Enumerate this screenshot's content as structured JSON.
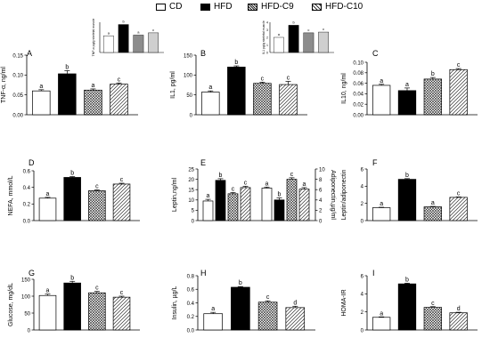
{
  "legend": [
    {
      "label": "CD",
      "fill": "white"
    },
    {
      "label": "HFD",
      "fill": "black"
    },
    {
      "label": "HFD-C9",
      "fill": "dense"
    },
    {
      "label": "HFD-C10",
      "fill": "diag"
    }
  ],
  "colors": {
    "bar_outline": "#000000",
    "inset_grey": "#8c8c8c",
    "inset_light": "#cfcfcf"
  },
  "chart_data": [
    {
      "id": "A",
      "type": "bar",
      "panel_label": "A",
      "ylabel": "TNF-α, ng/ml",
      "ylim": [
        0,
        0.15
      ],
      "yticks": [
        "0.00",
        "0.05",
        "0.10",
        "0.15"
      ],
      "yticks_v": [
        0,
        0.05,
        0.1,
        0.15
      ],
      "values": [
        0.06,
        0.103,
        0.062,
        0.077
      ],
      "errors": [
        0.003,
        0.008,
        0.003,
        0.003
      ],
      "letters": [
        "a",
        "b",
        "a",
        "c"
      ],
      "inset": {
        "ylabel": "TNF-α pg/g skeletal muscle",
        "ylim": [
          0,
          4
        ],
        "values": [
          2.2,
          3.7,
          2.3,
          2.6
        ],
        "letters": [
          "a",
          "b",
          "a",
          "c"
        ]
      }
    },
    {
      "id": "B",
      "type": "bar",
      "panel_label": "B",
      "ylabel": "IL1, pg/ml",
      "ylim": [
        0,
        150
      ],
      "yticks": [
        "0",
        "50",
        "100",
        "150"
      ],
      "yticks_v": [
        0,
        50,
        100,
        150
      ],
      "values": [
        57,
        120,
        79,
        76
      ],
      "errors": [
        3,
        3,
        3,
        8
      ],
      "letters": [
        "a",
        "b",
        "c",
        "c"
      ],
      "inset": {
        "ylabel": "IL1 pg/g skeletal muscle",
        "ylim": [
          0,
          4
        ],
        "yticks": [
          "0",
          "1",
          "2",
          "3",
          "4"
        ],
        "values": [
          2.0,
          3.6,
          2.6,
          2.7
        ],
        "letters": [
          "a",
          "b",
          "c",
          "c"
        ]
      }
    },
    {
      "id": "C",
      "type": "bar",
      "panel_label": "C",
      "ylabel": "IL10, ng/ml",
      "ylim": [
        0,
        0.1
      ],
      "yticks": [
        "0.00",
        "0.02",
        "0.04",
        "0.06",
        "0.08",
        "0.10"
      ],
      "yticks_v": [
        0,
        0.02,
        0.04,
        0.06,
        0.08,
        0.1
      ],
      "values": [
        0.056,
        0.046,
        0.068,
        0.086
      ],
      "errors": [
        0.002,
        0.005,
        0.003,
        0.002
      ],
      "letters": [
        "a",
        "a",
        "b",
        "c"
      ]
    },
    {
      "id": "D",
      "type": "bar",
      "panel_label": "D",
      "ylabel": "NEFA, mmol/L",
      "ylim": [
        0,
        0.6
      ],
      "yticks": [
        "0.0",
        "0.2",
        "0.4",
        "0.6"
      ],
      "yticks_v": [
        0,
        0.2,
        0.4,
        0.6
      ],
      "values": [
        0.27,
        0.52,
        0.36,
        0.44
      ],
      "errors": [
        0.01,
        0.01,
        0.01,
        0.01
      ],
      "letters": [
        "a",
        "b",
        "c",
        "c"
      ]
    },
    {
      "id": "E",
      "type": "bar",
      "panel_label": "E",
      "ylabel": "Leptin,ng/ml",
      "y2label": "Adiponectin,μg/ml",
      "ylim": [
        0,
        25
      ],
      "yticks": [
        "0",
        "5",
        "10",
        "15",
        "20",
        "25"
      ],
      "yticks_v": [
        0,
        5,
        10,
        15,
        20,
        25
      ],
      "y2lim": [
        0,
        10
      ],
      "y2ticks": [
        "0",
        "2",
        "4",
        "6",
        "8",
        "10"
      ],
      "y2ticks_v": [
        0,
        2,
        4,
        6,
        8,
        10
      ],
      "groups": [
        {
          "name": "Leptin",
          "values": [
            9.5,
            19.5,
            13,
            16
          ],
          "errors": [
            0.8,
            0.8,
            0.6,
            0.6
          ],
          "letters": [
            "a",
            "b",
            "c",
            "c"
          ]
        },
        {
          "name": "Adiponectin",
          "values": [
            6.3,
            4.0,
            8.0,
            6.1
          ],
          "errors": [
            0.2,
            0.4,
            0.3,
            0.3
          ],
          "letters": [
            "a",
            "b",
            "c",
            "a"
          ]
        }
      ]
    },
    {
      "id": "F",
      "type": "bar",
      "panel_label": "F",
      "ylabel": "Leptin/adiponectin",
      "ylim": [
        0,
        6
      ],
      "yticks": [
        "0",
        "2",
        "4",
        "6"
      ],
      "yticks_v": [
        0,
        2,
        4,
        6
      ],
      "values": [
        1.5,
        4.8,
        1.6,
        2.7
      ],
      "errors": [
        0.05,
        0.08,
        0.05,
        0.05
      ],
      "letters": [
        "a",
        "b",
        "a",
        "c"
      ]
    },
    {
      "id": "G",
      "type": "bar",
      "panel_label": "G",
      "ylabel": "Glucose, mg/dL",
      "ylim": [
        0,
        150
      ],
      "yticks": [
        "0",
        "50",
        "100",
        "150"
      ],
      "yticks_v": [
        0,
        50,
        100,
        150
      ],
      "values": [
        102,
        139,
        110,
        97
      ],
      "errors": [
        4,
        5,
        4,
        3
      ],
      "letters": [
        "a",
        "b",
        "c",
        "c"
      ]
    },
    {
      "id": "H",
      "type": "bar",
      "panel_label": "H",
      "ylabel": "Insulin, µg/L",
      "ylim": [
        0,
        0.8
      ],
      "yticks": [
        "0.0",
        "0.2",
        "0.4",
        "0.6",
        "0.8"
      ],
      "yticks_v": [
        0,
        0.2,
        0.4,
        0.6,
        0.8
      ],
      "values": [
        0.24,
        0.63,
        0.41,
        0.33
      ],
      "errors": [
        0.02,
        0.01,
        0.02,
        0.02
      ],
      "letters": [
        "a",
        "b",
        "c",
        "d"
      ]
    },
    {
      "id": "I",
      "type": "bar",
      "panel_label": "I",
      "ylabel": "HOMA-IR",
      "ylim": [
        0,
        6
      ],
      "yticks": [
        "0",
        "2",
        "4",
        "6"
      ],
      "yticks_v": [
        0,
        2,
        4,
        6
      ],
      "values": [
        1.4,
        5.1,
        2.5,
        1.9
      ],
      "errors": [
        0.05,
        0.08,
        0.08,
        0.06
      ],
      "letters": [
        "a",
        "b",
        "c",
        "d"
      ]
    }
  ]
}
